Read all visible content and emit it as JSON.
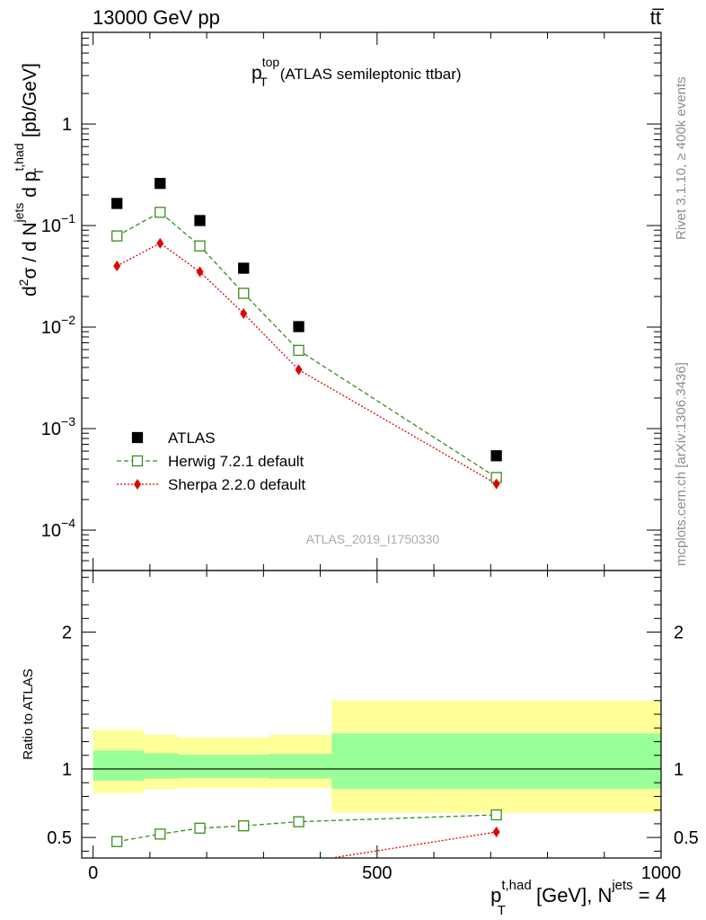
{
  "header": {
    "left": "13000 GeV pp",
    "right": "tt̅"
  },
  "plot_title": {
    "main": "p",
    "sup": "top",
    "sub": "T",
    "rest": "(ATLAS semileptonic ttbar)"
  },
  "watermark": "ATLAS_2019_I1750330",
  "side_labels": {
    "rivet": "Rivet 3.1.10, ≥ 400k events",
    "mcplots": "mcplots.cern.ch [arXiv:1306.3436]"
  },
  "main_ylabel": {
    "part1": "d",
    "part1_sup": "2",
    "part2": "σ / d N",
    "part2_sup": "jets",
    "part3": " d p",
    "part3_sup": "t,had",
    "part3_sub": "T",
    "part4": " [pb/GeV]"
  },
  "ratio_ylabel": "Ratio to ATLAS",
  "xlabel": {
    "p": "p",
    "sup": "t,had",
    "sub": "T",
    "mid": " [GeV], N",
    "sup2": "jets",
    "end": " = 4"
  },
  "main_yticks": [
    {
      "base": "1",
      "exp": "",
      "value": 1
    },
    {
      "base": "10",
      "exp": "−1",
      "value": 0.1
    },
    {
      "base": "10",
      "exp": "−2",
      "value": 0.01
    },
    {
      "base": "10",
      "exp": "−3",
      "value": 0.001
    },
    {
      "base": "10",
      "exp": "−4",
      "value": 0.0001
    }
  ],
  "ratio_yticks": [
    "0.5",
    "1",
    "2"
  ],
  "xticks": [
    "0",
    "500",
    "1000"
  ],
  "legend": {
    "atlas": "ATLAS",
    "herwig": "Herwig 7.2.1 default",
    "sherpa": "Sherpa 2.2.0 default"
  },
  "colors": {
    "atlas": "#000000",
    "herwig": "#3a8c1a",
    "sherpa": "#e00000",
    "band_inner": "#99ff99",
    "band_outer": "#ffff99"
  },
  "chart_data": [
    {
      "type": "scatter",
      "panel": "main",
      "xlabel": "p_T^{t,had} [GeV], N^{jets} = 4",
      "ylabel": "d^2σ / d N^{jets} d p_T^{t,had} [pb/GeV]",
      "title": "p_T^{top} (ATLAS semileptonic ttbar)",
      "yscale": "log",
      "xlim": [
        -20,
        1000
      ],
      "ylim": [
        4e-05,
        8
      ],
      "bins": [
        [
          0,
          90
        ],
        [
          90,
          150
        ],
        [
          150,
          230
        ],
        [
          230,
          310
        ],
        [
          310,
          420
        ],
        [
          420,
          1000
        ]
      ],
      "series": [
        {
          "name": "ATLAS",
          "x": [
            42,
            118,
            188,
            265,
            362,
            710
          ],
          "values": [
            0.165,
            0.26,
            0.112,
            0.038,
            0.0101,
            0.00054
          ]
        },
        {
          "name": "Herwig 7.2.1 default",
          "x": [
            42,
            118,
            188,
            265,
            362,
            710
          ],
          "values": [
            0.079,
            0.135,
            0.063,
            0.0215,
            0.0059,
            0.00033
          ]
        },
        {
          "name": "Sherpa 2.2.0 default",
          "x": [
            42,
            118,
            188,
            265,
            362,
            710
          ],
          "values": [
            0.04,
            0.067,
            0.035,
            0.0136,
            0.0038,
            0.000285
          ]
        }
      ]
    },
    {
      "type": "line",
      "panel": "ratio",
      "ylabel": "Ratio to ATLAS",
      "xlim": [
        -20,
        1000
      ],
      "ylim": [
        0.35,
        2.45
      ],
      "bands": [
        {
          "x0": 0,
          "x1": 90,
          "inner": [
            0.915,
            1.135
          ],
          "outer": [
            0.825,
            1.285
          ]
        },
        {
          "x0": 90,
          "x1": 150,
          "inner": [
            0.93,
            1.115
          ],
          "outer": [
            0.855,
            1.25
          ]
        },
        {
          "x0": 150,
          "x1": 230,
          "inner": [
            0.935,
            1.105
          ],
          "outer": [
            0.86,
            1.23
          ]
        },
        {
          "x0": 230,
          "x1": 310,
          "inner": [
            0.935,
            1.105
          ],
          "outer": [
            0.86,
            1.23
          ]
        },
        {
          "x0": 310,
          "x1": 420,
          "inner": [
            0.93,
            1.11
          ],
          "outer": [
            0.86,
            1.25
          ]
        },
        {
          "x0": 420,
          "x1": 1000,
          "inner": [
            0.855,
            1.26
          ],
          "outer": [
            0.68,
            1.5
          ]
        }
      ],
      "series": [
        {
          "name": "Herwig 7.2.1 default",
          "x": [
            42,
            118,
            188,
            265,
            362,
            710
          ],
          "values": [
            0.47,
            0.525,
            0.568,
            0.585,
            0.615,
            0.665
          ]
        },
        {
          "name": "Sherpa 2.2.0 default",
          "x": [
            420,
            710
          ],
          "values": [
            0.35,
            0.54
          ],
          "yerr": [
            0,
            0.03
          ]
        }
      ]
    }
  ]
}
